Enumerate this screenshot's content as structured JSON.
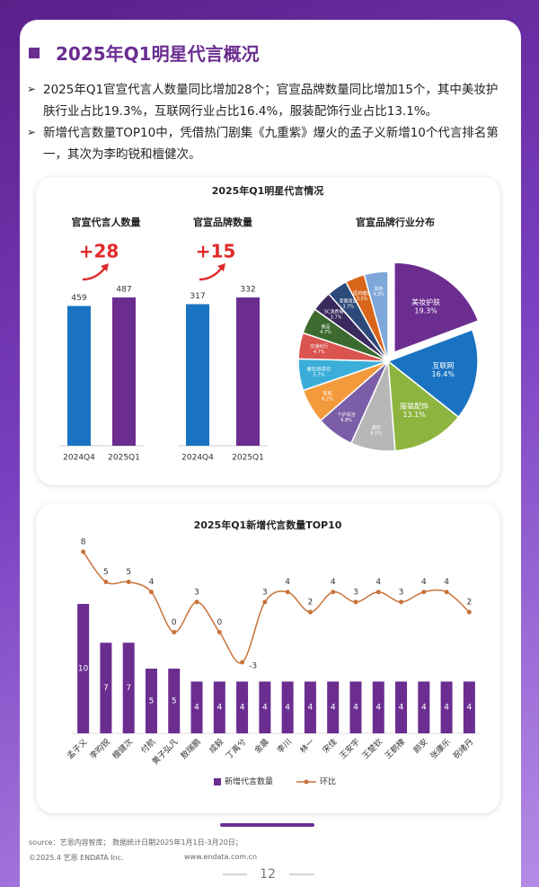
{
  "header": {
    "title": "2025年Q1明星代言概况"
  },
  "bullets": [
    "2025年Q1官宣代言人数量同比增加28个；官宣品牌数量同比增加15个，其中美妆护肤行业占比19.3%，互联网行业占比16.4%，服装配饰行业占比13.1%。",
    "新增代言数量TOP10中，凭借热门剧集《九重紫》爆火的孟子义新增10个代言排名第一，其次为李昀锐和檀健次。"
  ],
  "panel": {
    "title": "2025年Q1明星代言情况"
  },
  "chart_data": [
    {
      "type": "bar",
      "title": "官宣代言人数量",
      "categories": [
        "2024Q4",
        "2025Q1"
      ],
      "values": [
        459,
        487
      ],
      "colors": [
        "#1a73c2",
        "#6b2d90"
      ],
      "annotation": "+28"
    },
    {
      "type": "bar",
      "title": "官宣品牌数量",
      "categories": [
        "2024Q4",
        "2025Q1"
      ],
      "values": [
        317,
        332
      ],
      "colors": [
        "#1a73c2",
        "#6b2d90"
      ],
      "annotation": "+15"
    },
    {
      "type": "pie",
      "title": "官宣品牌行业分布",
      "categories": [
        "美妆护肤",
        "互联网",
        "服装配饰",
        "酒饮",
        "个护清洁",
        "家电",
        "餐饮/新茶饮",
        "交通出行",
        "食品",
        "3C消费电子",
        "家居用品",
        "医药健康",
        "其他"
      ],
      "values": [
        19.3,
        16.4,
        13.1,
        8.0,
        6.8,
        6.2,
        5.7,
        4.7,
        4.7,
        3.7,
        3.7,
        3.5,
        4.3
      ],
      "value_labels": [
        "19.3%",
        "16.4%",
        "13.1%",
        "8.0%",
        "6.8%",
        "6.2%",
        "5.7%",
        "4.7%",
        "4.7%",
        "3.7%",
        "3.7%",
        "3.5%",
        "4.3%"
      ],
      "colors": [
        "#6b2d90",
        "#1a73c2",
        "#8db43e",
        "#b7b7b7",
        "#7b5ea7",
        "#f39a3c",
        "#3aaed8",
        "#d9534f",
        "#3d6b2f",
        "#3b2a5e",
        "#2e4a7a",
        "#d8651a",
        "#7fa7d9"
      ]
    },
    {
      "type": "combo",
      "title": "2025年Q1新增代言数量TOP10",
      "categories": [
        "孟子义",
        "李昀锐",
        "檀健次",
        "付航",
        "黄子弘凡",
        "敖瑞鹏",
        "成毅",
        "丁禹兮",
        "金晨",
        "李川",
        "林一",
        "宋佳",
        "王安宇",
        "王楚钦",
        "王鹤棣",
        "颜安",
        "张康乐",
        "祝绪丹"
      ],
      "series": [
        {
          "name": "新增代言数量",
          "type": "bar",
          "color": "#6b2d90",
          "values": [
            10,
            7,
            7,
            5,
            5,
            4,
            4,
            4,
            4,
            4,
            4,
            4,
            4,
            4,
            4,
            4,
            4,
            4
          ]
        },
        {
          "name": "环比",
          "type": "line",
          "axis": "y2",
          "color": "#c8733a",
          "values": [
            8,
            5,
            5,
            4,
            0,
            3,
            0,
            -3,
            3,
            4,
            2,
            4,
            3,
            4,
            3,
            4,
            4,
            2
          ]
        }
      ]
    }
  ],
  "footer": {
    "source": "source：艺恩内容智库；  数据统计日期2025年1月1日-3月20日；",
    "copyright": "©2025.4 艺恩 ENDATA Inc.",
    "website": "www.endata.com.cn",
    "page": 12
  }
}
